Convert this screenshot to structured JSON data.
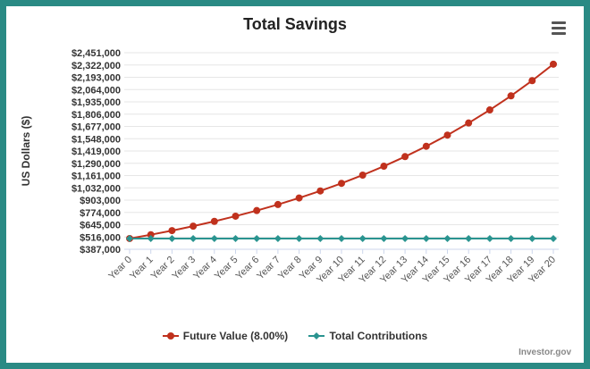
{
  "chart_data": {
    "type": "line",
    "title": "Total Savings",
    "ylabel": "US Dollars ($)",
    "xlabel": "",
    "categories": [
      "Year 0",
      "Year 1",
      "Year 2",
      "Year 3",
      "Year 4",
      "Year 5",
      "Year 6",
      "Year 7",
      "Year 8",
      "Year 9",
      "Year 10",
      "Year 11",
      "Year 12",
      "Year 13",
      "Year 14",
      "Year 15",
      "Year 16",
      "Year 17",
      "Year 18",
      "Year 19",
      "Year 20"
    ],
    "y_ticks": [
      "$387,000",
      "$516,000",
      "$645,000",
      "$774,000",
      "$903,000",
      "$1,032,000",
      "$1,161,000",
      "$1,290,000",
      "$1,419,000",
      "$1,548,000",
      "$1,677,000",
      "$1,806,000",
      "$1,935,000",
      "$2,064,000",
      "$2,193,000",
      "$2,322,000",
      "$2,451,000"
    ],
    "ylim": [
      387000,
      2451000
    ],
    "grid": true,
    "legend_position": "bottom-center",
    "series": [
      {
        "name": "Future Value (8.00%)",
        "color": "#c0311d",
        "marker": "circle",
        "values": [
          500000,
          540000,
          583200,
          629856,
          680244,
          734664,
          793437,
          856912,
          925465,
          999502,
          1079462,
          1165819,
          1259084,
          1359811,
          1468596,
          1586084,
          1712970,
          1850008,
          1998008,
          2157849,
          2330477
        ]
      },
      {
        "name": "Total Contributions",
        "color": "#2a9490",
        "marker": "diamond",
        "values": [
          500000,
          500000,
          500000,
          500000,
          500000,
          500000,
          500000,
          500000,
          500000,
          500000,
          500000,
          500000,
          500000,
          500000,
          500000,
          500000,
          500000,
          500000,
          500000,
          500000,
          500000
        ]
      }
    ]
  },
  "credits": "Investor.gov",
  "icons": {
    "menu": "hamburger-menu-icon"
  }
}
